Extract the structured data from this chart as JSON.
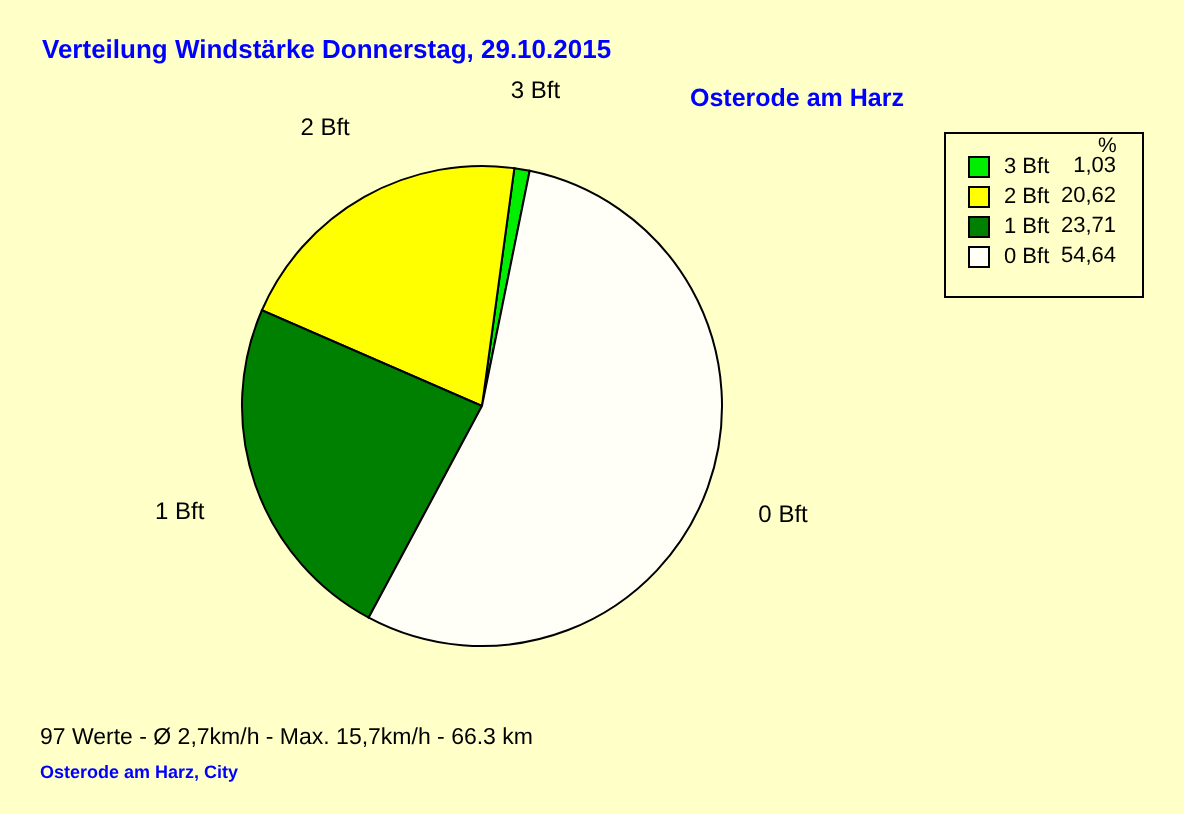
{
  "chart_data": {
    "type": "pie",
    "title": "Verteilung Windstärke  Donnerstag, 29.10.2015",
    "subtitle": "Osterode am Harz",
    "categories": [
      "3 Bft",
      "2 Bft",
      "1 Bft",
      "0 Bft"
    ],
    "values": [
      1.03,
      20.62,
      23.71,
      54.64
    ],
    "colors": [
      "#00ee00",
      "#ffff00",
      "#008000",
      "#fffff8"
    ],
    "value_labels": [
      "1,03",
      "20,62",
      "23,71",
      "54,64"
    ],
    "legend_title": "%",
    "legend": "top right",
    "annotations": [
      "97 Werte   -   Ø 2,7km/h  -  Max. 15,7km/h   -   66.3 km",
      "Osterode am Harz, City"
    ]
  }
}
